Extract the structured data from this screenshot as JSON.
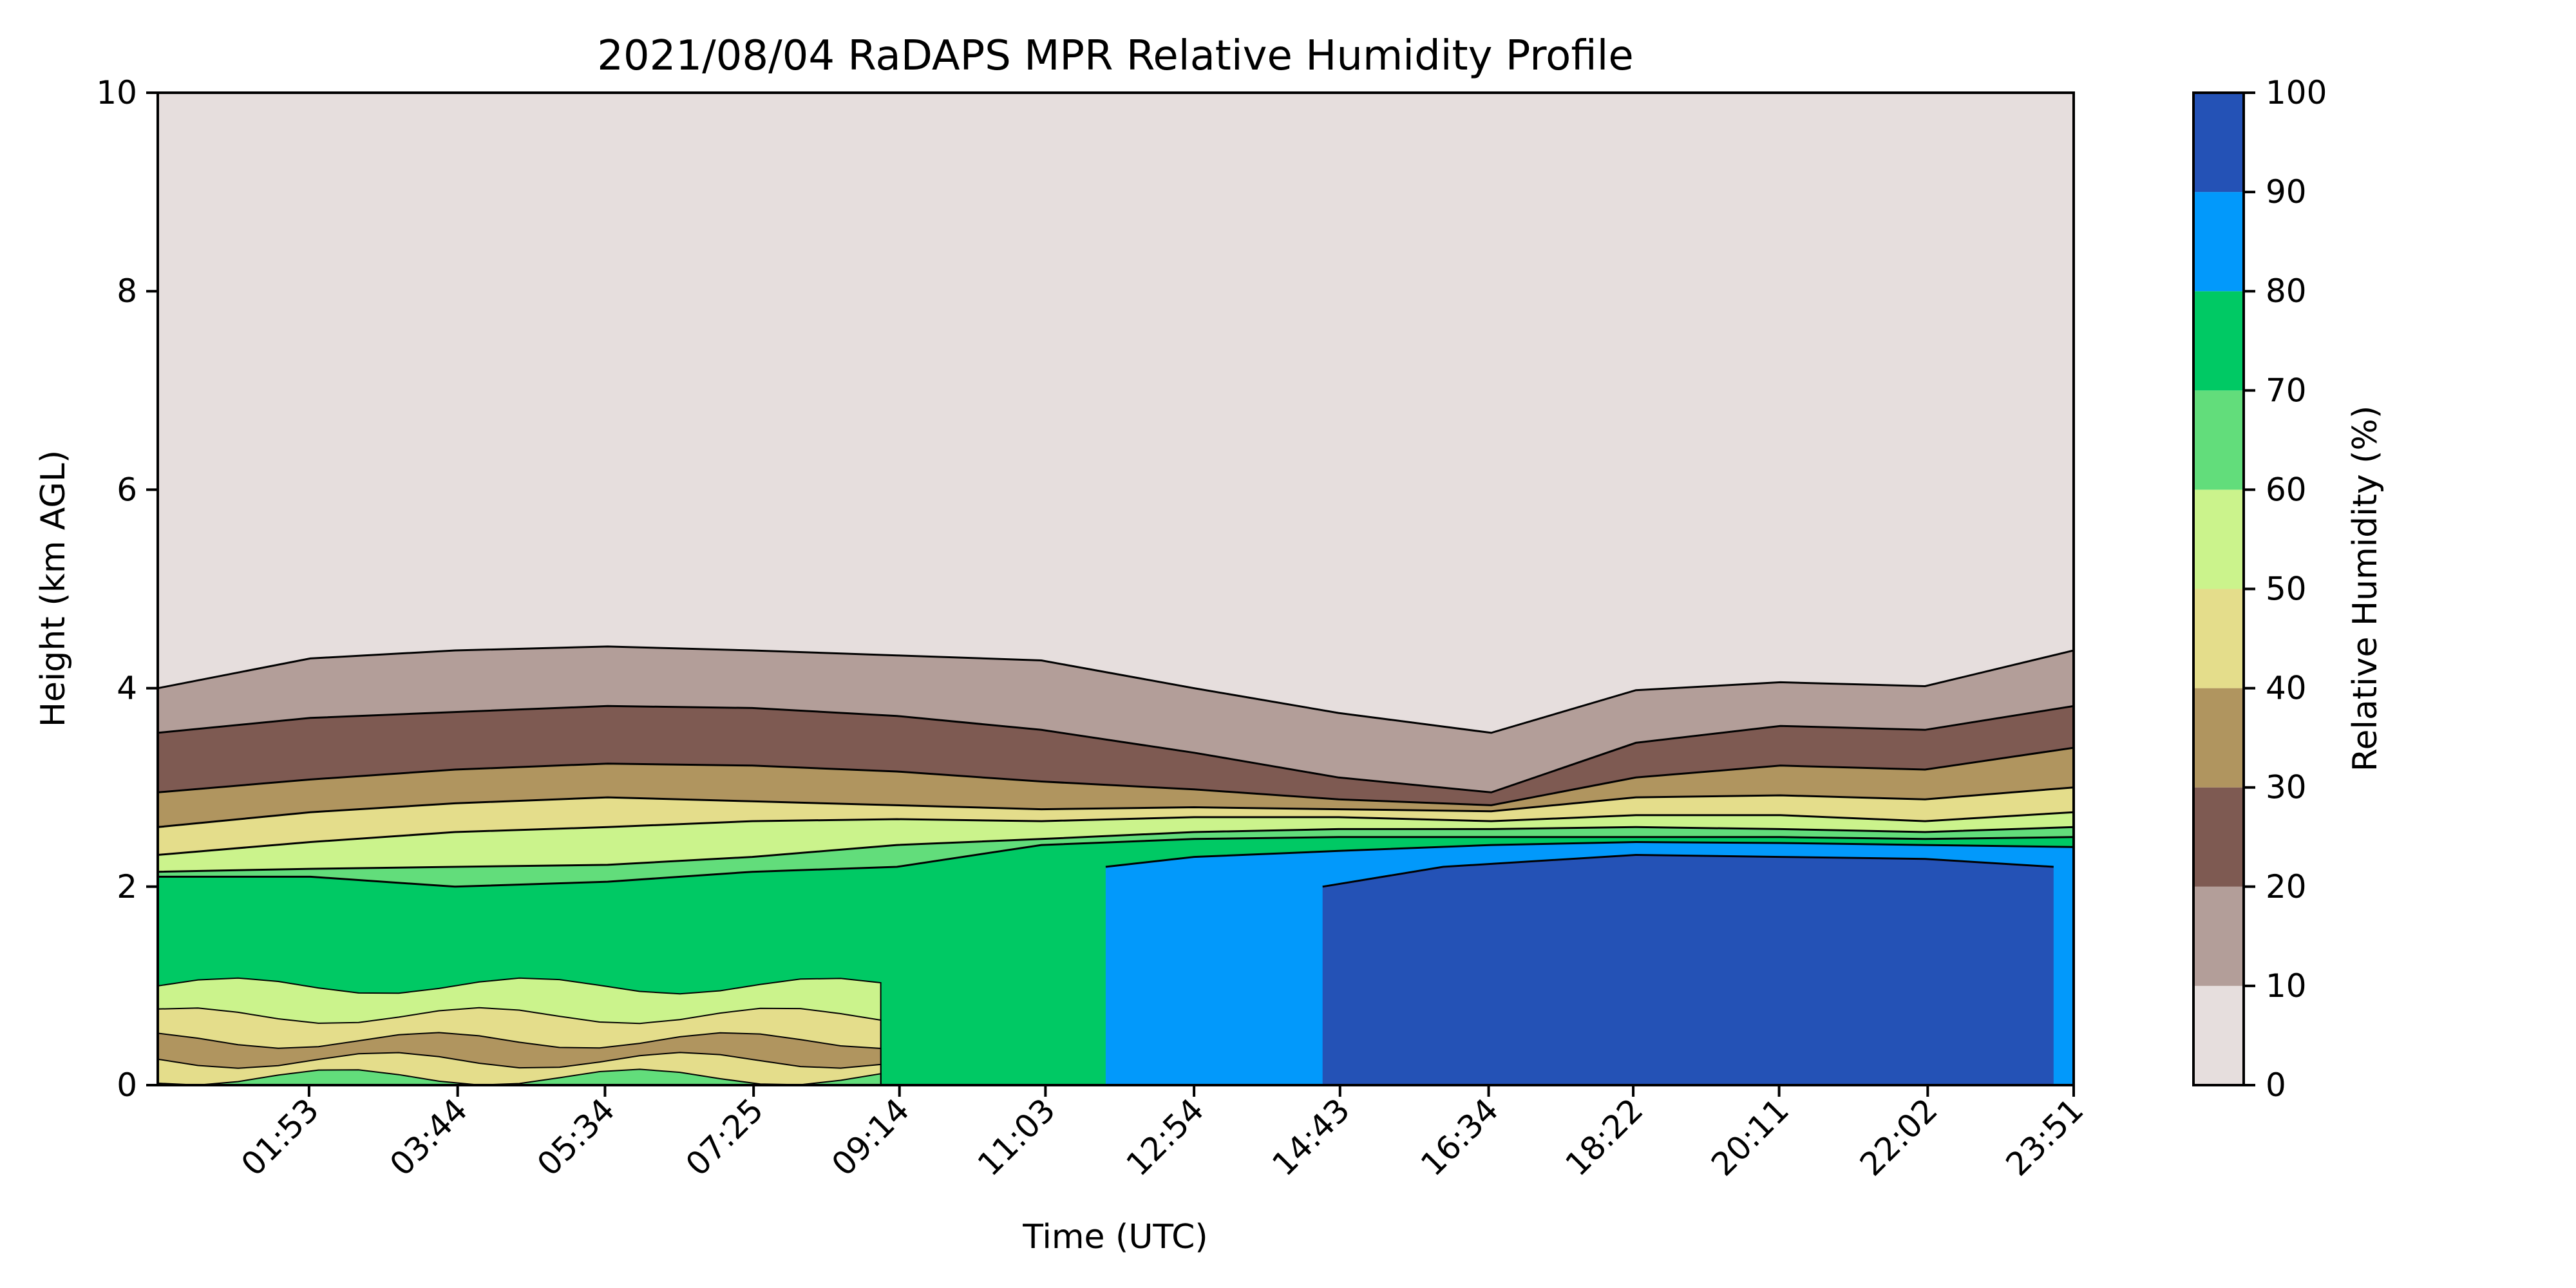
{
  "chart_data": {
    "type": "heatmap",
    "title": "2021/08/04 RaDAPS MPR Relative Humidity Profile",
    "xlabel": "Time (UTC)",
    "ylabel": "Height (km AGL)",
    "x_range_hours": [
      0.0,
      23.85
    ],
    "ylim": [
      0,
      10
    ],
    "y_ticks": [
      0,
      2,
      4,
      6,
      8,
      10
    ],
    "x_ticks": [
      "01:53",
      "03:44",
      "05:34",
      "07:25",
      "09:14",
      "11:03",
      "12:54",
      "14:43",
      "16:34",
      "18:22",
      "20:11",
      "22:02",
      "23:51"
    ],
    "x_tick_hours": [
      1.883,
      3.733,
      5.567,
      7.417,
      9.233,
      11.05,
      12.9,
      14.717,
      16.567,
      18.367,
      20.183,
      22.033,
      23.85
    ],
    "colorbar": {
      "label": "Relative Humidity (%)",
      "levels": [
        0,
        10,
        20,
        30,
        40,
        50,
        60,
        70,
        80,
        90,
        100
      ],
      "colors": [
        "#e6dedd",
        "#b39e99",
        "#7e5a52",
        "#b0955f",
        "#e4dd8b",
        "#cbf38c",
        "#62dd7b",
        "#00c964",
        "#0299fb",
        "#2452b6"
      ]
    },
    "contour_boundaries_km": [
      {
        "rh": 10,
        "points": [
          [
            0.0,
            4.0
          ],
          [
            1.9,
            4.3
          ],
          [
            3.7,
            4.38
          ],
          [
            5.6,
            4.42
          ],
          [
            7.4,
            4.38
          ],
          [
            9.2,
            4.33
          ],
          [
            11.0,
            4.28
          ],
          [
            12.9,
            4.0
          ],
          [
            14.7,
            3.75
          ],
          [
            16.6,
            3.55
          ],
          [
            18.4,
            3.98
          ],
          [
            20.2,
            4.06
          ],
          [
            22.0,
            4.02
          ],
          [
            23.85,
            4.38
          ]
        ]
      },
      {
        "rh": 20,
        "points": [
          [
            0.0,
            3.55
          ],
          [
            1.9,
            3.7
          ],
          [
            3.7,
            3.76
          ],
          [
            5.6,
            3.82
          ],
          [
            7.4,
            3.8
          ],
          [
            9.2,
            3.72
          ],
          [
            11.0,
            3.58
          ],
          [
            12.9,
            3.35
          ],
          [
            14.7,
            3.1
          ],
          [
            16.6,
            2.95
          ],
          [
            18.4,
            3.45
          ],
          [
            20.2,
            3.62
          ],
          [
            22.0,
            3.58
          ],
          [
            23.85,
            3.82
          ]
        ]
      },
      {
        "rh": 30,
        "points": [
          [
            0.0,
            2.95
          ],
          [
            1.9,
            3.08
          ],
          [
            3.7,
            3.18
          ],
          [
            5.6,
            3.24
          ],
          [
            7.4,
            3.22
          ],
          [
            9.2,
            3.16
          ],
          [
            11.0,
            3.06
          ],
          [
            12.9,
            2.98
          ],
          [
            14.7,
            2.88
          ],
          [
            16.6,
            2.82
          ],
          [
            18.4,
            3.1
          ],
          [
            20.2,
            3.22
          ],
          [
            22.0,
            3.18
          ],
          [
            23.85,
            3.4
          ]
        ]
      },
      {
        "rh": 40,
        "points": [
          [
            0.0,
            2.6
          ],
          [
            1.9,
            2.75
          ],
          [
            3.7,
            2.84
          ],
          [
            5.6,
            2.9
          ],
          [
            7.4,
            2.86
          ],
          [
            9.2,
            2.82
          ],
          [
            11.0,
            2.78
          ],
          [
            12.9,
            2.8
          ],
          [
            14.7,
            2.78
          ],
          [
            16.6,
            2.76
          ],
          [
            18.4,
            2.9
          ],
          [
            20.2,
            2.92
          ],
          [
            22.0,
            2.88
          ],
          [
            23.85,
            3.0
          ]
        ]
      },
      {
        "rh": 50,
        "points": [
          [
            0.0,
            2.32
          ],
          [
            1.9,
            2.45
          ],
          [
            3.7,
            2.55
          ],
          [
            5.6,
            2.6
          ],
          [
            7.4,
            2.66
          ],
          [
            9.2,
            2.68
          ],
          [
            11.0,
            2.66
          ],
          [
            12.9,
            2.7
          ],
          [
            14.7,
            2.7
          ],
          [
            16.6,
            2.66
          ],
          [
            18.4,
            2.72
          ],
          [
            20.2,
            2.72
          ],
          [
            22.0,
            2.66
          ],
          [
            23.85,
            2.75
          ]
        ]
      },
      {
        "rh": 60,
        "points": [
          [
            0.0,
            2.15
          ],
          [
            1.9,
            2.18
          ],
          [
            3.7,
            2.2
          ],
          [
            5.6,
            2.22
          ],
          [
            7.4,
            2.3
          ],
          [
            9.2,
            2.42
          ],
          [
            11.0,
            2.48
          ],
          [
            12.9,
            2.55
          ],
          [
            14.7,
            2.58
          ],
          [
            16.6,
            2.58
          ],
          [
            18.4,
            2.6
          ],
          [
            20.2,
            2.58
          ],
          [
            22.0,
            2.55
          ],
          [
            23.85,
            2.6
          ]
        ]
      },
      {
        "rh": 70,
        "points": [
          [
            0.0,
            2.1
          ],
          [
            1.9,
            2.1
          ],
          [
            3.7,
            2.0
          ],
          [
            5.6,
            2.05
          ],
          [
            7.4,
            2.15
          ],
          [
            9.2,
            2.2
          ],
          [
            11.0,
            2.42
          ],
          [
            12.9,
            2.48
          ],
          [
            14.7,
            2.5
          ],
          [
            16.6,
            2.5
          ],
          [
            18.4,
            2.5
          ],
          [
            20.2,
            2.5
          ],
          [
            22.0,
            2.48
          ],
          [
            23.85,
            2.5
          ]
        ]
      },
      {
        "rh": 80,
        "points": [
          [
            11.8,
            2.2
          ],
          [
            12.9,
            2.3
          ],
          [
            14.7,
            2.36
          ],
          [
            16.6,
            2.42
          ],
          [
            18.4,
            2.45
          ],
          [
            20.2,
            2.44
          ],
          [
            22.0,
            2.42
          ],
          [
            23.85,
            2.4
          ]
        ]
      },
      {
        "rh": 90,
        "points": [
          [
            14.5,
            2.0
          ],
          [
            16.0,
            2.2
          ],
          [
            18.4,
            2.32
          ],
          [
            20.2,
            2.3
          ],
          [
            22.0,
            2.28
          ],
          [
            23.6,
            2.2
          ]
        ]
      }
    ]
  }
}
